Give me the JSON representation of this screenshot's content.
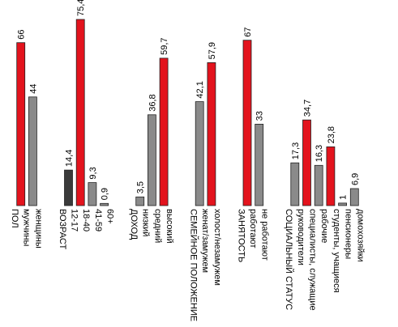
{
  "chart_data": {
    "type": "bar",
    "title": "",
    "xlabel": "",
    "ylabel": "",
    "ylim": [
      0,
      80
    ],
    "grid": false,
    "legend": "none",
    "colors": {
      "highlight": "#e3131d",
      "neutral": "#8a8a8a",
      "dark": "#3a3a3a",
      "edge": "#222222"
    },
    "items": [
      {
        "label": "ПОЛ",
        "kind": "group"
      },
      {
        "label": "мужчины",
        "kind": "bar",
        "value": 66,
        "value_label": "66",
        "color": "highlight"
      },
      {
        "label": "женщины",
        "kind": "bar",
        "value": 44,
        "value_label": "44",
        "color": "neutral"
      },
      {
        "label": "",
        "kind": "gap"
      },
      {
        "label": "ВОЗРАСТ",
        "kind": "group"
      },
      {
        "label": "12-17",
        "kind": "bar",
        "value": 14.4,
        "value_label": "14,4",
        "color": "dark"
      },
      {
        "label": "18-40",
        "kind": "bar",
        "value": 75.4,
        "value_label": "75,4",
        "color": "highlight"
      },
      {
        "label": "41-59",
        "kind": "bar",
        "value": 9.3,
        "value_label": "9,3",
        "color": "neutral"
      },
      {
        "label": "60+",
        "kind": "bar",
        "value": 0.9,
        "value_label": "0,9",
        "color": "neutral"
      },
      {
        "label": "",
        "kind": "gap"
      },
      {
        "label": "ДОХОД",
        "kind": "group"
      },
      {
        "label": "низкий",
        "kind": "bar",
        "value": 3.5,
        "value_label": "3,5",
        "color": "neutral"
      },
      {
        "label": "средний",
        "kind": "bar",
        "value": 36.8,
        "value_label": "36,8",
        "color": "neutral"
      },
      {
        "label": "высокий",
        "kind": "bar",
        "value": 59.7,
        "value_label": "59,7",
        "color": "highlight"
      },
      {
        "label": "",
        "kind": "gap"
      },
      {
        "label": "СЕМЕЙНОЕ ПОЛОЖЕНИЕ",
        "kind": "group"
      },
      {
        "label": "женат/замужем",
        "kind": "bar",
        "value": 42.1,
        "value_label": "42,1",
        "color": "neutral"
      },
      {
        "label": "холост/незамужем",
        "kind": "bar",
        "value": 57.9,
        "value_label": "57,9",
        "color": "highlight"
      },
      {
        "label": "",
        "kind": "gap"
      },
      {
        "label": "ЗАНЯТОСТЬ",
        "kind": "group"
      },
      {
        "label": "работают",
        "kind": "bar",
        "value": 67,
        "value_label": "67",
        "color": "highlight"
      },
      {
        "label": "не работают",
        "kind": "bar",
        "value": 33,
        "value_label": "33",
        "color": "neutral"
      },
      {
        "label": "",
        "kind": "gap"
      },
      {
        "label": "СОЦИАЛЬНЫЙ СТАТУС",
        "kind": "group"
      },
      {
        "label": "руководители",
        "kind": "bar",
        "value": 17.3,
        "value_label": "17,3",
        "color": "neutral"
      },
      {
        "label": "специалисты, служащие",
        "kind": "bar",
        "value": 34.7,
        "value_label": "34,7",
        "color": "highlight"
      },
      {
        "label": "рабочие",
        "kind": "bar",
        "value": 16.3,
        "value_label": "16,3",
        "color": "neutral"
      },
      {
        "label": "студенты, учащиеся",
        "kind": "bar",
        "value": 23.8,
        "value_label": "23,8",
        "color": "highlight"
      },
      {
        "label": "пенсионеры",
        "kind": "bar",
        "value": 1,
        "value_label": "1",
        "color": "neutral"
      },
      {
        "label": "домохозяйки",
        "kind": "bar",
        "value": 6.9,
        "value_label": "6,9",
        "color": "neutral"
      }
    ]
  }
}
